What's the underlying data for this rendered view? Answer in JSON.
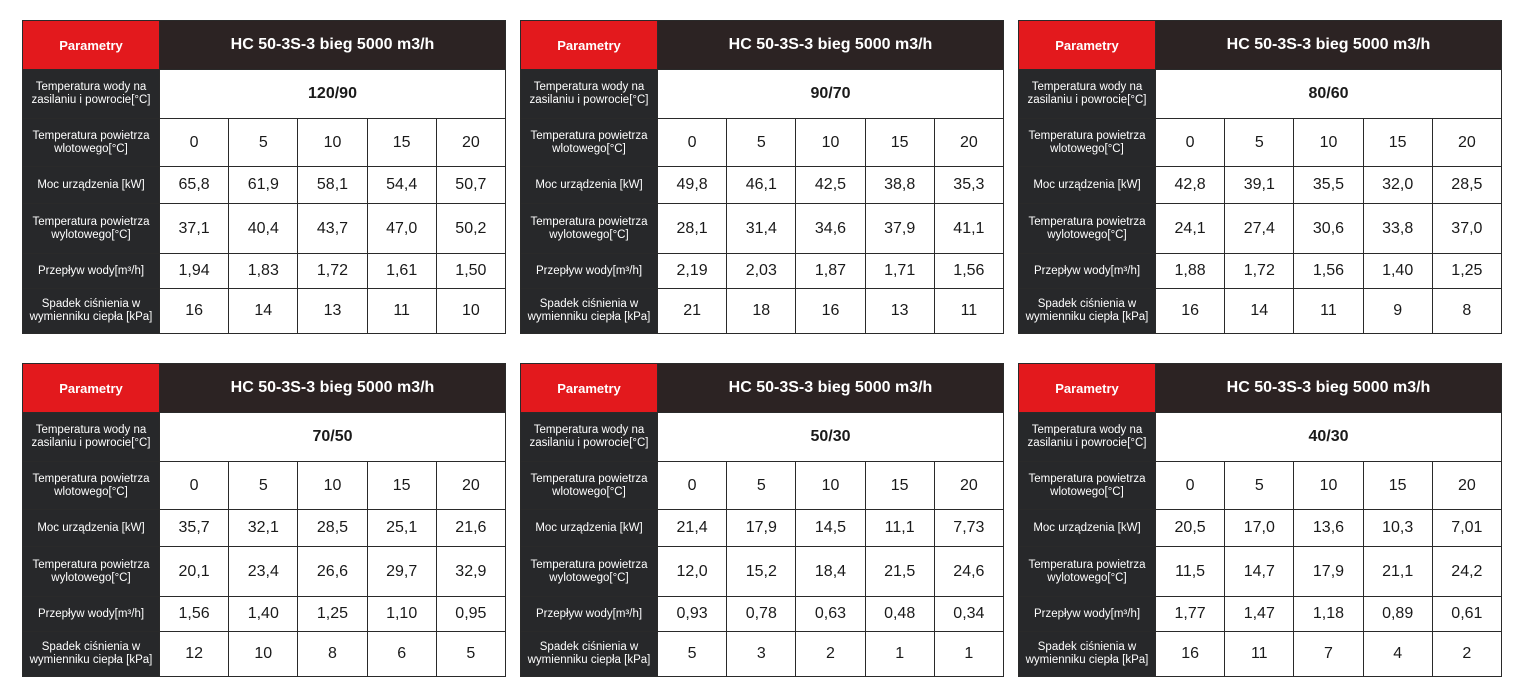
{
  "labels": {
    "parametry": "Parametry",
    "temp_water": "Temperatura wody na zasilaniu i powrocie[°C]",
    "temp_air_in": "Temperatura powietrza wlotowego[°C]",
    "power": "Moc urządzenia [kW]",
    "temp_air_out": "Temperatura powietrza wylotowego[°C]",
    "flow": "Przepływ wody[m³/h]",
    "pressure_drop": "Spadek ciśnienia w wymienniku ciepła [kPa]"
  },
  "tables": [
    {
      "title": "HC 50-3S-3 bieg 5000 m3/h",
      "water_temp": "120/90",
      "air_in": [
        "0",
        "5",
        "10",
        "15",
        "20"
      ],
      "power": [
        "65,8",
        "61,9",
        "58,1",
        "54,4",
        "50,7"
      ],
      "air_out": [
        "37,1",
        "40,4",
        "43,7",
        "47,0",
        "50,2"
      ],
      "flow": [
        "1,94",
        "1,83",
        "1,72",
        "1,61",
        "1,50"
      ],
      "pressure_drop": [
        "16",
        "14",
        "13",
        "11",
        "10"
      ]
    },
    {
      "title": "HC 50-3S-3 bieg 5000 m3/h",
      "water_temp": "90/70",
      "air_in": [
        "0",
        "5",
        "10",
        "15",
        "20"
      ],
      "power": [
        "49,8",
        "46,1",
        "42,5",
        "38,8",
        "35,3"
      ],
      "air_out": [
        "28,1",
        "31,4",
        "34,6",
        "37,9",
        "41,1"
      ],
      "flow": [
        "2,19",
        "2,03",
        "1,87",
        "1,71",
        "1,56"
      ],
      "pressure_drop": [
        "21",
        "18",
        "16",
        "13",
        "11"
      ]
    },
    {
      "title": "HC 50-3S-3 bieg 5000 m3/h",
      "water_temp": "80/60",
      "air_in": [
        "0",
        "5",
        "10",
        "15",
        "20"
      ],
      "power": [
        "42,8",
        "39,1",
        "35,5",
        "32,0",
        "28,5"
      ],
      "air_out": [
        "24,1",
        "27,4",
        "30,6",
        "33,8",
        "37,0"
      ],
      "flow": [
        "1,88",
        "1,72",
        "1,56",
        "1,40",
        "1,25"
      ],
      "pressure_drop": [
        "16",
        "14",
        "11",
        "9",
        "8"
      ]
    },
    {
      "title": "HC 50-3S-3 bieg 5000 m3/h",
      "water_temp": "70/50",
      "air_in": [
        "0",
        "5",
        "10",
        "15",
        "20"
      ],
      "power": [
        "35,7",
        "32,1",
        "28,5",
        "25,1",
        "21,6"
      ],
      "air_out": [
        "20,1",
        "23,4",
        "26,6",
        "29,7",
        "32,9"
      ],
      "flow": [
        "1,56",
        "1,40",
        "1,25",
        "1,10",
        "0,95"
      ],
      "pressure_drop": [
        "12",
        "10",
        "8",
        "6",
        "5"
      ]
    },
    {
      "title": "HC 50-3S-3 bieg 5000 m3/h",
      "water_temp": "50/30",
      "air_in": [
        "0",
        "5",
        "10",
        "15",
        "20"
      ],
      "power": [
        "21,4",
        "17,9",
        "14,5",
        "11,1",
        "7,73"
      ],
      "air_out": [
        "12,0",
        "15,2",
        "18,4",
        "21,5",
        "24,6"
      ],
      "flow": [
        "0,93",
        "0,78",
        "0,63",
        "0,48",
        "0,34"
      ],
      "pressure_drop": [
        "5",
        "3",
        "2",
        "1",
        "1"
      ]
    },
    {
      "title": "HC 50-3S-3 bieg 5000 m3/h",
      "water_temp": "40/30",
      "air_in": [
        "0",
        "5",
        "10",
        "15",
        "20"
      ],
      "power": [
        "20,5",
        "17,0",
        "13,6",
        "10,3",
        "7,01"
      ],
      "air_out": [
        "11,5",
        "14,7",
        "17,9",
        "21,1",
        "24,2"
      ],
      "flow": [
        "1,77",
        "1,47",
        "1,18",
        "0,89",
        "0,61"
      ],
      "pressure_drop": [
        "16",
        "11",
        "7",
        "4",
        "2"
      ]
    }
  ]
}
